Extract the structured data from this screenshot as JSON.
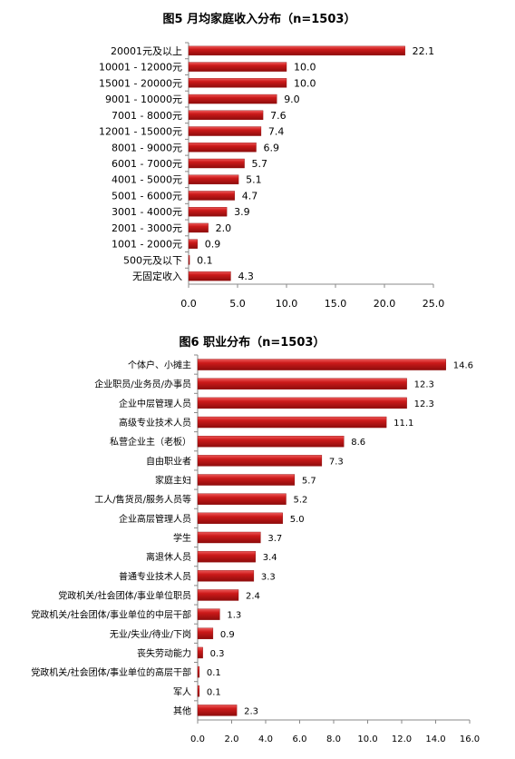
{
  "colors": {
    "bar": "#cc1a1a",
    "bar_light": "#ee5a5a",
    "bar_dark": "#8e0c0c",
    "axis": "#888888",
    "text": "#000000"
  },
  "chart_data": [
    {
      "type": "bar",
      "orientation": "horizontal",
      "title": "图5 月均家庭收入分布（n=1503）",
      "categories": [
        "20001元及以上",
        "10001 - 12000元",
        "15001 - 20000元",
        "9001 - 10000元",
        "7001 - 8000元",
        "12001 - 15000元",
        "8001 - 9000元",
        "6001 - 7000元",
        "4001 - 5000元",
        "5001 - 6000元",
        "3001 - 4000元",
        "2001 - 3000元",
        "1001 - 2000元",
        "500元及以下",
        "无固定收入"
      ],
      "values": [
        22.1,
        10.0,
        10.0,
        9.0,
        7.6,
        7.4,
        6.9,
        5.7,
        5.1,
        4.7,
        3.9,
        2.0,
        0.9,
        0.1,
        4.3
      ],
      "value_labels": [
        "22.1",
        "10.0",
        "10.0",
        "9.0",
        "7.6",
        "7.4",
        "6.9",
        "5.7",
        "5.1",
        "4.7",
        "3.9",
        "2.0",
        "0.9",
        "0.1",
        "4.3"
      ],
      "xlim": [
        0,
        25
      ],
      "xticks": [
        "0.0",
        "5.0",
        "10.0",
        "15.0",
        "20.0",
        "25.0"
      ],
      "xlabel": "",
      "ylabel": "",
      "grid": false
    },
    {
      "type": "bar",
      "orientation": "horizontal",
      "title": "图6 职业分布（n=1503）",
      "categories": [
        "个体户、小摊主",
        "企业职员/业务员/办事员",
        "企业中层管理人员",
        "高级专业技术人员",
        "私营企业主（老板）",
        "自由职业者",
        "家庭主妇",
        "工人/售货员/服务人员等",
        "企业高层管理人员",
        "学生",
        "离退休人员",
        "普通专业技术人员",
        "党政机关/社会团体/事业单位职员",
        "党政机关/社会团体/事业单位的中层干部",
        "无业/失业/待业/下岗",
        "丧失劳动能力",
        "党政机关/社会团体/事业单位的高层干部",
        "军人",
        "其他"
      ],
      "values": [
        14.6,
        12.3,
        12.3,
        11.1,
        8.6,
        7.3,
        5.7,
        5.2,
        5.0,
        3.7,
        3.4,
        3.3,
        2.4,
        1.3,
        0.9,
        0.3,
        0.1,
        0.1,
        2.3
      ],
      "value_labels": [
        "14.6",
        "12.3",
        "12.3",
        "11.1",
        "8.6",
        "7.3",
        "5.7",
        "5.2",
        "5.0",
        "3.7",
        "3.4",
        "3.3",
        "2.4",
        "1.3",
        "0.9",
        "0.3",
        "0.1",
        "0.1",
        "2.3"
      ],
      "xlim": [
        0,
        16
      ],
      "xticks": [
        "0.0",
        "2.0",
        "4.0",
        "6.0",
        "8.0",
        "10.0",
        "12.0",
        "14.0",
        "16.0"
      ],
      "xlabel": "",
      "ylabel": "",
      "grid": false
    }
  ]
}
